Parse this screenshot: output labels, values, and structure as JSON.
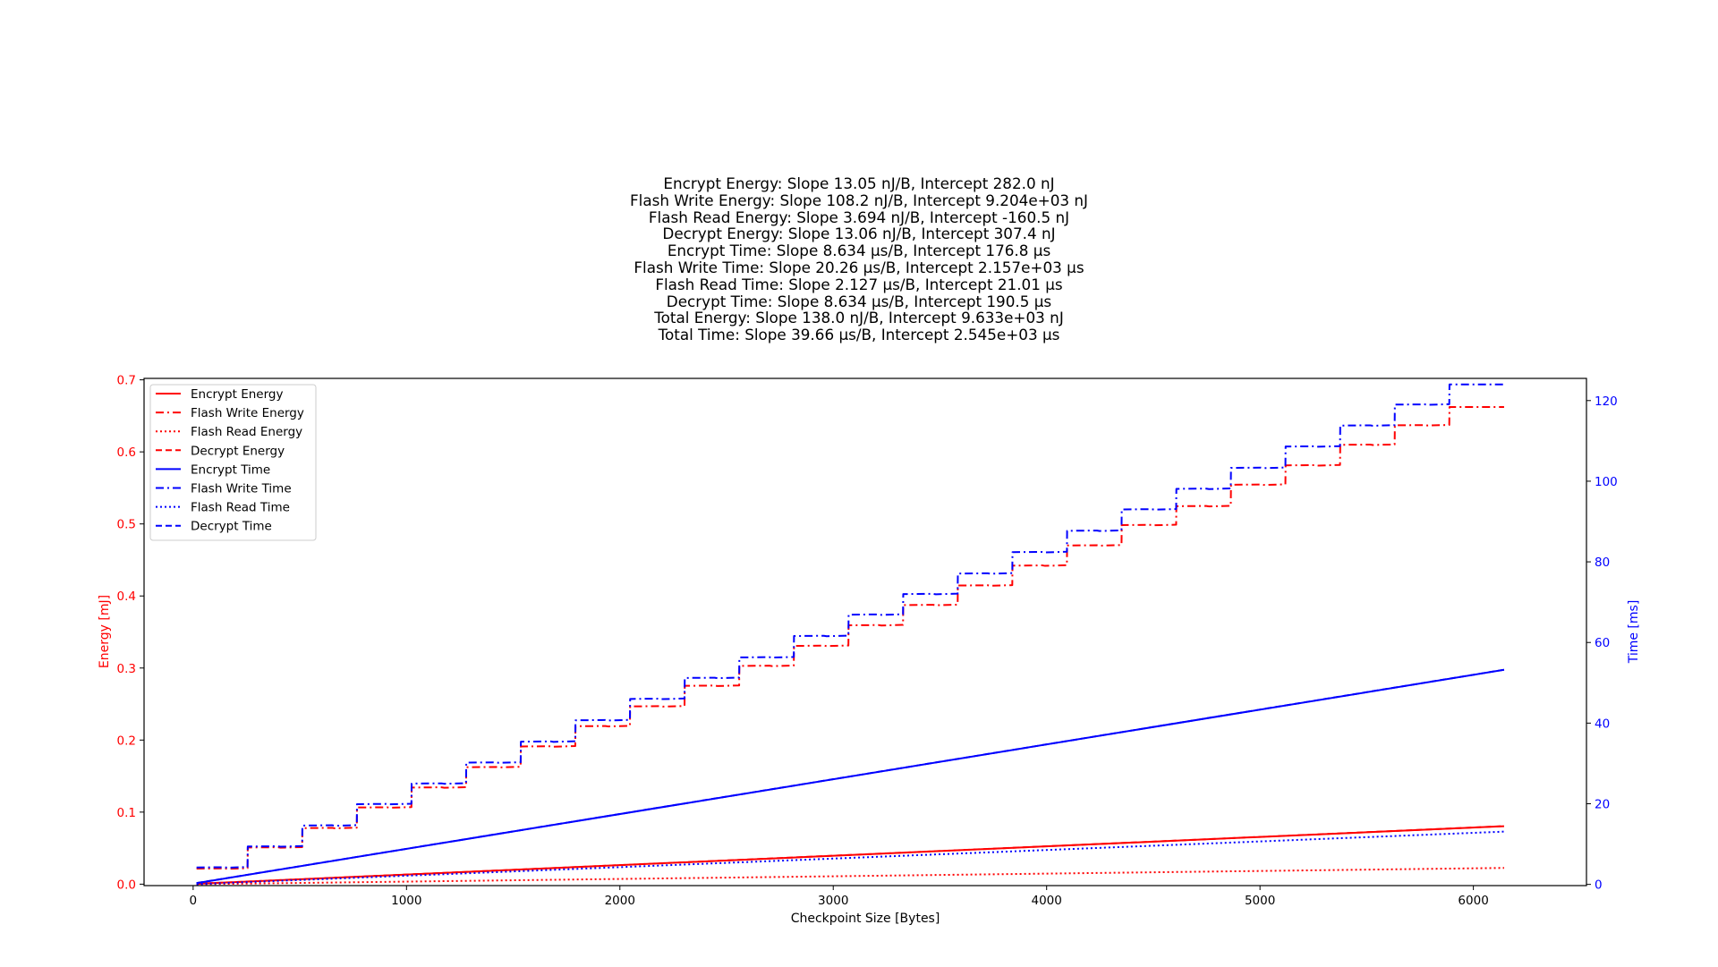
{
  "figure": {
    "title_lines": [
      "Encrypt Energy: Slope 13.05 nJ/B, Intercept 282.0 nJ",
      "Flash Write Energy: Slope 108.2 nJ/B, Intercept 9.204e+03 nJ",
      "Flash Read Energy: Slope 3.694 nJ/B, Intercept -160.5 nJ",
      "Decrypt Energy: Slope 13.06 nJ/B, Intercept 307.4 nJ",
      "Encrypt Time: Slope 8.634 μs/B, Intercept 176.8 μs",
      "Flash Write Time: Slope 20.26 μs/B, Intercept 2.157e+03 μs",
      "Flash Read Time: Slope 2.127 μs/B, Intercept 21.01 μs",
      "Decrypt Time: Slope 8.634 μs/B, Intercept 190.5 μs",
      "Total Energy: Slope 138.0 nJ/B, Intercept 9.633e+03 nJ",
      "Total Time: Slope 39.66 μs/B, Intercept 2.545e+03 μs"
    ]
  },
  "chart_data": {
    "type": "line",
    "xlabel": "Checkpoint Size [Bytes]",
    "ylabel_left": "Energy [mJ]",
    "ylabel_right": "Time [ms]",
    "xlim": [
      -230,
      6530
    ],
    "ylim_left": [
      -0.002,
      0.702
    ],
    "ylim_right": [
      -0.3,
      125.5
    ],
    "x_ticks": [
      0,
      1000,
      2000,
      3000,
      4000,
      5000,
      6000
    ],
    "y_left_ticks": [
      0.0,
      0.1,
      0.2,
      0.3,
      0.4,
      0.5,
      0.6,
      0.7
    ],
    "y_left_tick_labels": [
      "0.0",
      "0.1",
      "0.2",
      "0.3",
      "0.4",
      "0.5",
      "0.6",
      "0.7"
    ],
    "y_right_ticks": [
      0,
      20,
      40,
      60,
      80,
      100,
      120
    ],
    "grid": false,
    "legend_position": "upper-left",
    "colors": {
      "energy": "#ff0000",
      "time": "#0000ff",
      "axis": "#000000"
    },
    "x_start": 16,
    "x_end": 6144,
    "step_size_bytes": 256,
    "series": [
      {
        "name": "Encrypt Energy",
        "axis": "left",
        "color": "#ff0000",
        "dash": "solid",
        "model": "linear",
        "slope": 1.305e-05,
        "intercept": 0.000282
      },
      {
        "name": "Flash Write Energy",
        "axis": "left",
        "color": "#ff0000",
        "dash": "dashdot",
        "model": "step",
        "step_values": [
          0.0216,
          0.0509,
          0.0778,
          0.1064,
          0.1341,
          0.1623,
          0.1911,
          0.2192,
          0.2467,
          0.2753,
          0.3029,
          0.3307,
          0.3593,
          0.3874,
          0.4145,
          0.4421,
          0.4701,
          0.4984,
          0.5246,
          0.5544,
          0.5813,
          0.6098,
          0.6369,
          0.6623
        ]
      },
      {
        "name": "Flash Read Energy",
        "axis": "left",
        "color": "#ff0000",
        "dash": "dotted",
        "model": "linear",
        "slope": 3.694e-06,
        "intercept": -0.0001605
      },
      {
        "name": "Decrypt Energy",
        "axis": "left",
        "color": "#ff0000",
        "dash": "dashed",
        "model": "linear",
        "slope": 1.306e-05,
        "intercept": 0.0003074
      },
      {
        "name": "Encrypt Time",
        "axis": "right",
        "color": "#0000ff",
        "dash": "solid",
        "model": "linear",
        "slope": 0.008634,
        "intercept": 0.1768
      },
      {
        "name": "Flash Write Time",
        "axis": "right",
        "color": "#0000ff",
        "dash": "dashdot",
        "model": "step",
        "step_values": [
          4.2,
          9.4,
          14.6,
          19.9,
          25.0,
          30.2,
          35.4,
          40.7,
          46.0,
          51.2,
          56.3,
          61.6,
          66.9,
          72.0,
          77.1,
          82.4,
          87.7,
          93.0,
          98.1,
          103.3,
          108.6,
          113.8,
          119.0,
          124.0
        ]
      },
      {
        "name": "Flash Read Time",
        "axis": "right",
        "color": "#0000ff",
        "dash": "dotted",
        "model": "linear",
        "slope": 0.002127,
        "intercept": 0.021
      },
      {
        "name": "Decrypt Time",
        "axis": "right",
        "color": "#0000ff",
        "dash": "dashed",
        "model": "linear",
        "slope": 0.008634,
        "intercept": 0.1905
      }
    ]
  }
}
